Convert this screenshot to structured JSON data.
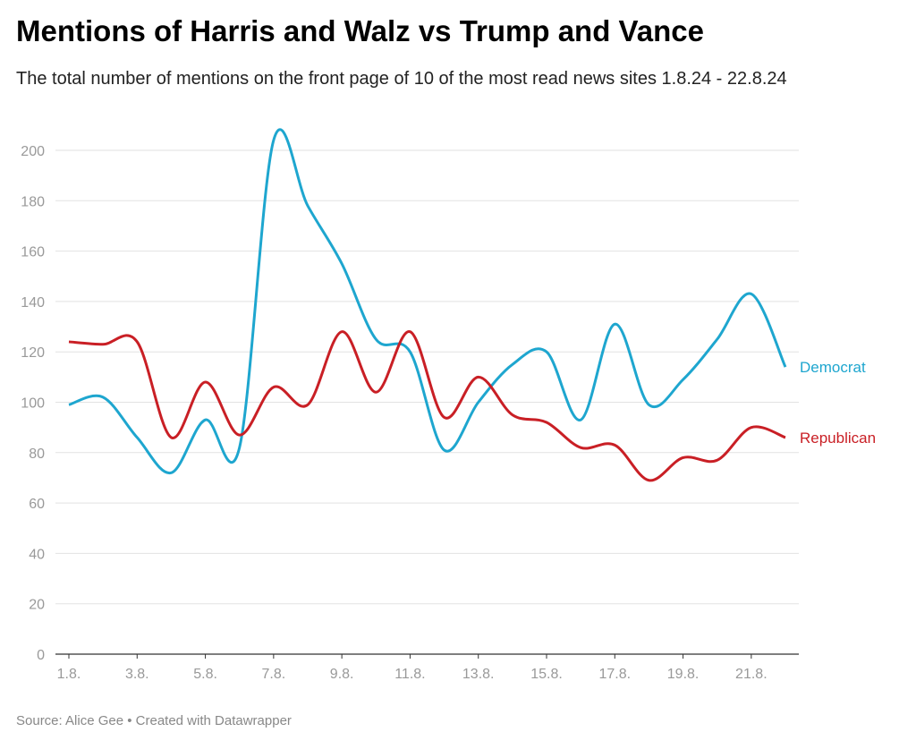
{
  "chart_data": {
    "type": "line",
    "title": "Mentions of Harris and Walz vs Trump and Vance",
    "subtitle": "The total number of mentions on the front page of 10 of the most read news sites 1.8.24 - 22.8.24",
    "source": "Source: Alice Gee • Created with Datawrapper",
    "xlabel": "",
    "ylabel": "",
    "ylim": [
      0,
      200
    ],
    "yticks": [
      0,
      20,
      40,
      60,
      80,
      100,
      120,
      140,
      160,
      180,
      200
    ],
    "x": [
      "1.8.",
      "2.8.",
      "3.8.",
      "4.8.",
      "5.8.",
      "6.8.",
      "7.8.",
      "8.8.",
      "9.8.",
      "10.8.",
      "11.8.",
      "12.8.",
      "13.8.",
      "14.8.",
      "15.8.",
      "16.8.",
      "17.8.",
      "18.8.",
      "19.8.",
      "20.8.",
      "21.8.",
      "22.8."
    ],
    "xtick_labels": [
      "1.8.",
      "3.8.",
      "5.8.",
      "7.8.",
      "9.8.",
      "11.8.",
      "13.8.",
      "15.8.",
      "17.8.",
      "19.8.",
      "21.8."
    ],
    "grid": true,
    "series": [
      {
        "name": "Democrat",
        "color": "#1ea6cf",
        "values": [
          99,
          102,
          86,
          72,
          93,
          82,
          204,
          178,
          155,
          125,
          120,
          81,
          100,
          115,
          120,
          93,
          131,
          99,
          109,
          125,
          143,
          114
        ]
      },
      {
        "name": "Republican",
        "color": "#c91f25",
        "values": [
          124,
          123,
          124,
          86,
          108,
          87,
          106,
          99,
          128,
          104,
          128,
          94,
          110,
          95,
          92,
          82,
          83,
          69,
          78,
          77,
          90,
          86
        ]
      }
    ]
  }
}
